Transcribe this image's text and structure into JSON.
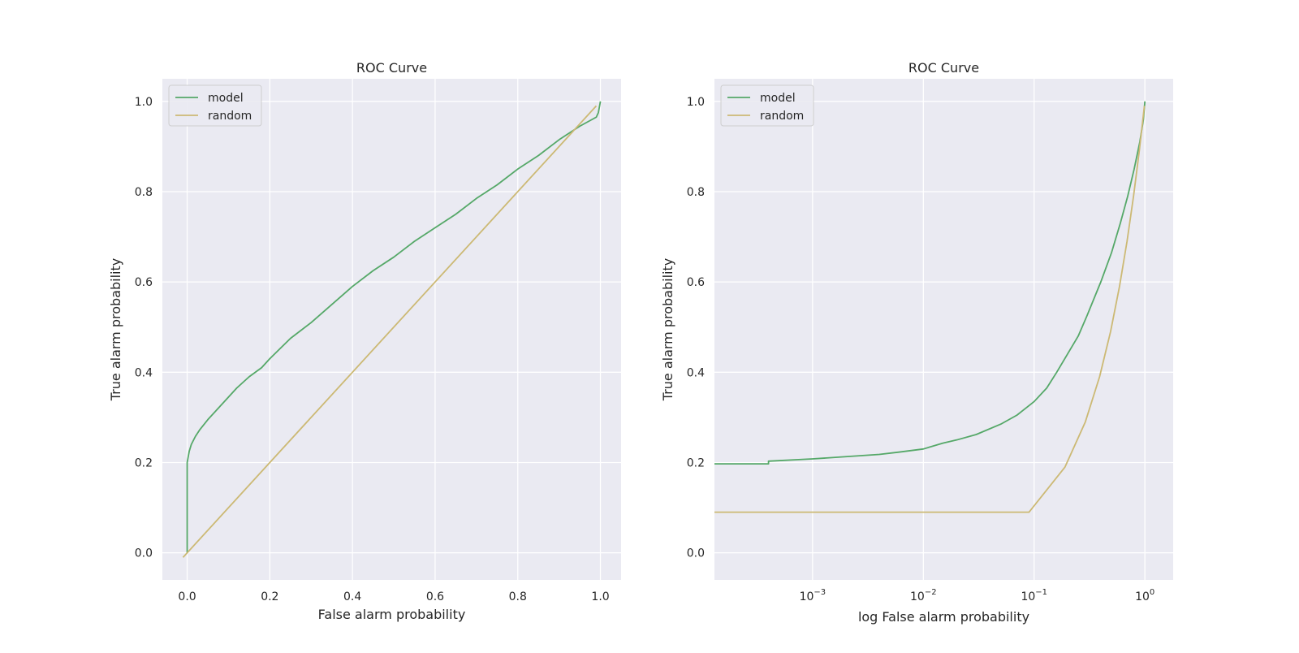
{
  "figure": {},
  "chart_data": [
    {
      "type": "line",
      "title": "ROC Curve",
      "xlabel": "False alarm probability",
      "ylabel": "True alarm probability",
      "x_scale": "linear",
      "xlim": [
        -0.06,
        1.05
      ],
      "ylim": [
        -0.06,
        1.05
      ],
      "xticks": [
        0.0,
        0.2,
        0.4,
        0.6,
        0.8,
        1.0
      ],
      "xtick_labels": [
        "0.0",
        "0.2",
        "0.4",
        "0.6",
        "0.8",
        "1.0"
      ],
      "yticks": [
        0.0,
        0.2,
        0.4,
        0.6,
        0.8,
        1.0
      ],
      "ytick_labels": [
        "0.0",
        "0.2",
        "0.4",
        "0.6",
        "0.8",
        "1.0"
      ],
      "grid": true,
      "legend_position": "upper-left",
      "series": [
        {
          "name": "model",
          "color": "#55a868",
          "x": [
            0.0,
            0.0,
            0.005,
            0.01,
            0.02,
            0.03,
            0.05,
            0.08,
            0.1,
            0.12,
            0.15,
            0.18,
            0.2,
            0.25,
            0.3,
            0.35,
            0.4,
            0.45,
            0.5,
            0.55,
            0.6,
            0.65,
            0.7,
            0.75,
            0.8,
            0.85,
            0.9,
            0.95,
            0.99,
            0.995,
            1.0
          ],
          "y": [
            0.0,
            0.2,
            0.225,
            0.24,
            0.258,
            0.272,
            0.295,
            0.325,
            0.345,
            0.365,
            0.39,
            0.41,
            0.43,
            0.475,
            0.51,
            0.55,
            0.59,
            0.625,
            0.655,
            0.69,
            0.72,
            0.75,
            0.785,
            0.815,
            0.85,
            0.88,
            0.915,
            0.945,
            0.965,
            0.975,
            1.0
          ]
        },
        {
          "name": "random",
          "color": "#ccb974",
          "x": [
            -0.01,
            0.99
          ],
          "y": [
            -0.01,
            0.99
          ]
        }
      ]
    },
    {
      "type": "line",
      "title": "ROC Curve",
      "xlabel": "log False alarm probability",
      "ylabel": "True alarm probability",
      "x_scale": "log",
      "xlim": [
        0.00013,
        1.8
      ],
      "ylim": [
        -0.06,
        1.05
      ],
      "xticks": [
        0.001,
        0.01,
        0.1,
        1
      ],
      "xtick_labels": [
        {
          "base": "10",
          "exp": "−3"
        },
        {
          "base": "10",
          "exp": "−2"
        },
        {
          "base": "10",
          "exp": "−1"
        },
        {
          "base": "10",
          "exp": "0"
        }
      ],
      "yticks": [
        0.0,
        0.2,
        0.4,
        0.6,
        0.8,
        1.0
      ],
      "ytick_labels": [
        "0.0",
        "0.2",
        "0.4",
        "0.6",
        "0.8",
        "1.0"
      ],
      "grid": true,
      "legend_position": "upper-left",
      "series": [
        {
          "name": "model",
          "color": "#55a868",
          "x": [
            0.00013,
            0.0004,
            0.0004,
            0.001,
            0.002,
            0.004,
            0.006,
            0.01,
            0.015,
            0.02,
            0.03,
            0.05,
            0.07,
            0.1,
            0.13,
            0.16,
            0.2,
            0.25,
            0.3,
            0.4,
            0.5,
            0.6,
            0.7,
            0.8,
            0.9,
            0.97,
            1.0
          ],
          "y": [
            0.197,
            0.197,
            0.203,
            0.208,
            0.213,
            0.218,
            0.223,
            0.23,
            0.243,
            0.25,
            0.262,
            0.285,
            0.305,
            0.335,
            0.365,
            0.4,
            0.44,
            0.48,
            0.525,
            0.6,
            0.665,
            0.73,
            0.79,
            0.85,
            0.91,
            0.96,
            1.0
          ]
        },
        {
          "name": "random",
          "color": "#ccb974",
          "x": [
            0.00013,
            0.09,
            0.19,
            0.29,
            0.39,
            0.49,
            0.59,
            0.69,
            0.79,
            0.89,
            0.99
          ],
          "y": [
            0.09,
            0.09,
            0.19,
            0.29,
            0.39,
            0.49,
            0.59,
            0.69,
            0.79,
            0.89,
            0.99
          ]
        }
      ]
    }
  ]
}
